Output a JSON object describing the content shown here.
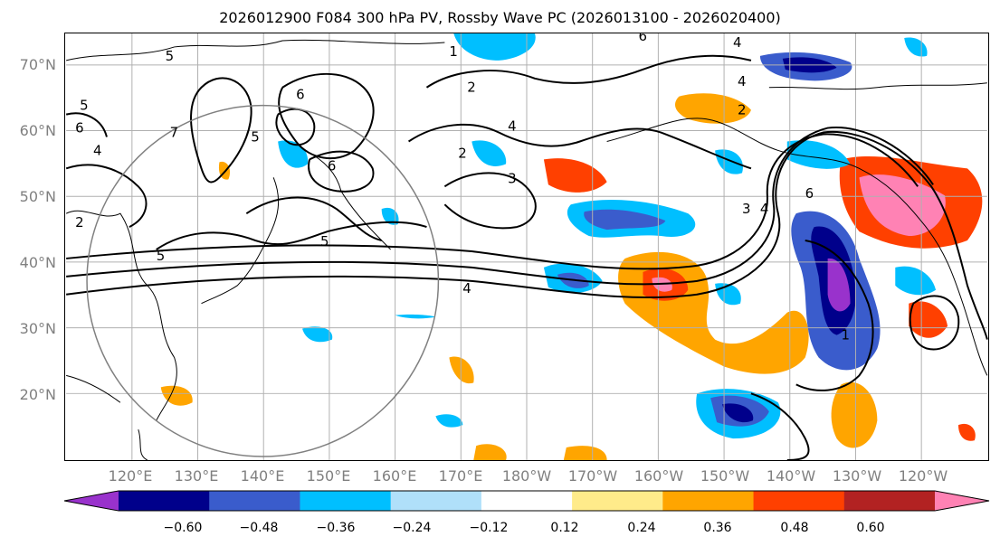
{
  "title": "2026012900 F084 300 hPa PV, Rossby Wave PC (2026013100 - 2026020400)",
  "lat_labels": [
    "70°N",
    "60°N",
    "50°N",
    "40°N",
    "30°N",
    "20°N"
  ],
  "lon_labels": [
    "120°E",
    "130°E",
    "140°E",
    "150°E",
    "160°E",
    "170°E",
    "180°W",
    "170°W",
    "160°W",
    "150°W",
    "140°W",
    "130°W",
    "120°W"
  ],
  "contour_labels": [
    "1",
    "2",
    "4",
    "5",
    "6",
    "6",
    "7",
    "5",
    "4",
    "2",
    "3",
    "4",
    "6",
    "4",
    "2",
    "4",
    "3",
    "4",
    "6",
    "5",
    "5",
    "5",
    "1",
    "2",
    "6"
  ],
  "colorbar": {
    "ticks": [
      "−0.60",
      "−0.48",
      "−0.36",
      "−0.24",
      "−0.12",
      "0.12",
      "0.24",
      "0.36",
      "0.48",
      "0.60"
    ],
    "colors": [
      "#9932cc",
      "#00008b",
      "#3a5ccc",
      "#00bfff",
      "#b0e0fa",
      "#ffffff",
      "#ffeb8a",
      "#ffa500",
      "#ff4000",
      "#b22222",
      "#ff82b4"
    ]
  }
}
